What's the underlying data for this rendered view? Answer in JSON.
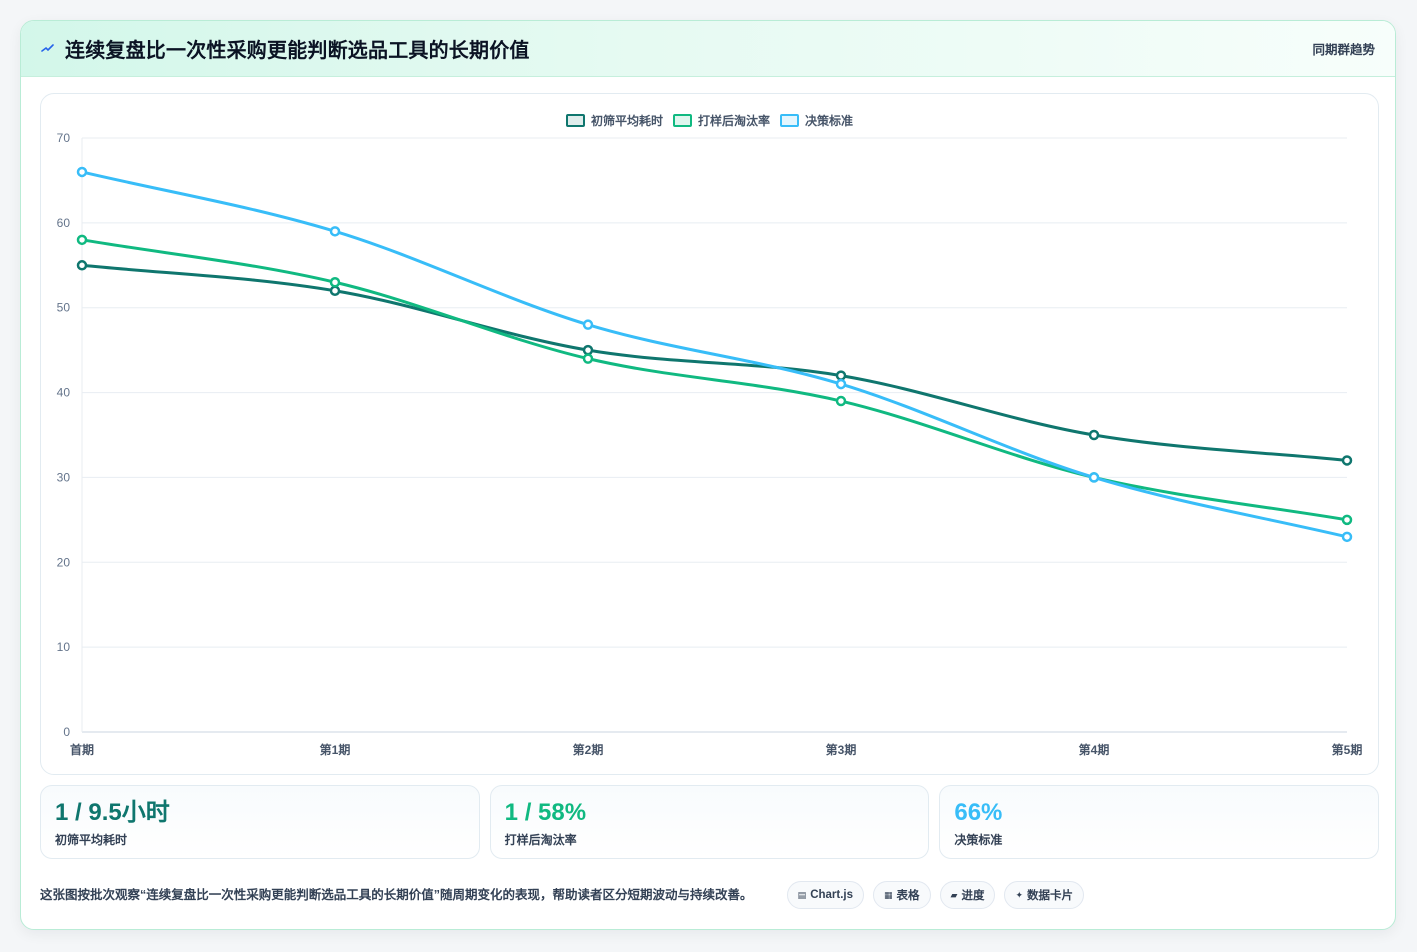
{
  "header": {
    "title": "连续复盘比一次性采购更能判断选品工具的长期价值",
    "tag": "同期群趋势",
    "icon": "bolt-icon"
  },
  "chart_data": {
    "type": "line",
    "categories": [
      "首期",
      "第1期",
      "第2期",
      "第3期",
      "第4期",
      "第5期"
    ],
    "series": [
      {
        "name": "初筛平均耗时",
        "color": "#0f766e",
        "values": [
          55,
          52,
          45,
          42,
          35,
          32
        ]
      },
      {
        "name": "打样后淘汰率",
        "color": "#10b981",
        "values": [
          58,
          53,
          44,
          39,
          30,
          25
        ]
      },
      {
        "name": "决策标准",
        "color": "#38bdf8",
        "values": [
          66,
          59,
          48,
          41,
          30,
          23
        ]
      }
    ],
    "ylim": [
      0,
      70
    ],
    "yticks": [
      "0",
      "10",
      "20",
      "30",
      "40",
      "50",
      "60",
      "70"
    ],
    "legend": "top-center",
    "grid": true
  },
  "stats": [
    {
      "value": "1 / 9.5小时",
      "label": "初筛平均耗时",
      "color": "#0f766e"
    },
    {
      "value": "1 / 58%",
      "label": "打样后淘汰率",
      "color": "#10b981"
    },
    {
      "value": "66%",
      "label": "决策标准",
      "color": "#38bdf8"
    }
  ],
  "footer": {
    "note": "这张图按批次观察“连续复盘比一次性采购更能判断选品工具的长期价值”随周期变化的表现，帮助读者区分短期波动与持续改善。",
    "chips": [
      {
        "icon": "chart-icon",
        "glyph": "▤",
        "label": "Chart.js"
      },
      {
        "icon": "table-icon",
        "glyph": "▦",
        "label": "表格"
      },
      {
        "icon": "progress-icon",
        "glyph": "▰",
        "label": "进度"
      },
      {
        "icon": "sparkle-icon",
        "glyph": "✦",
        "label": "数据卡片"
      }
    ]
  }
}
